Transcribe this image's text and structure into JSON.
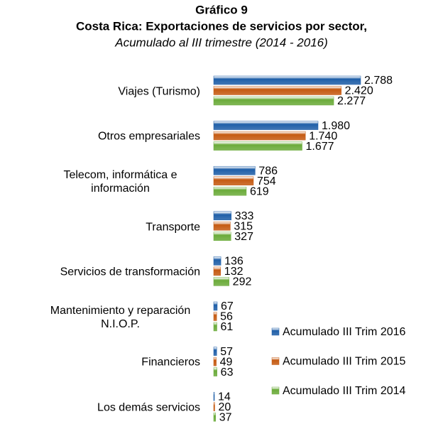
{
  "chart_data": {
    "type": "barh",
    "title": "Gráfico 9",
    "subtitle": "Costa Rica: Exportaciones de servicios por sector,",
    "subtitle2": "Acumulado al III trimestre (2014 - 2016)",
    "categories": [
      "Viajes (Turismo)",
      "Otros empresariales",
      "Telecom, informática e información",
      "Transporte",
      "Servicios de transformación",
      "Mantenimiento y reparación N.I.O.P.",
      "Financieros",
      "Los demás servicios"
    ],
    "series": [
      {
        "name": "Acumulado III Trim 2016",
        "color": "#1f5fa8",
        "values": [
          2788,
          1980,
          786,
          333,
          136,
          67,
          57,
          14
        ],
        "value_labels": [
          "2.788",
          "1.980",
          "786",
          "333",
          "136",
          "67",
          "57",
          "14"
        ]
      },
      {
        "name": "Acumulado III Trim 2015",
        "color": "#c55a11",
        "values": [
          2420,
          1740,
          754,
          315,
          132,
          56,
          49,
          20
        ],
        "value_labels": [
          "2.420",
          "1.740",
          "754",
          "315",
          "132",
          "56",
          "49",
          "20"
        ]
      },
      {
        "name": "Acumulado III Trim 2014",
        "color": "#6bab3a",
        "values": [
          2277,
          1677,
          619,
          327,
          292,
          61,
          63,
          37
        ],
        "value_labels": [
          "2.277",
          "1.677",
          "619",
          "327",
          "292",
          "61",
          "63",
          "37"
        ]
      }
    ]
  }
}
